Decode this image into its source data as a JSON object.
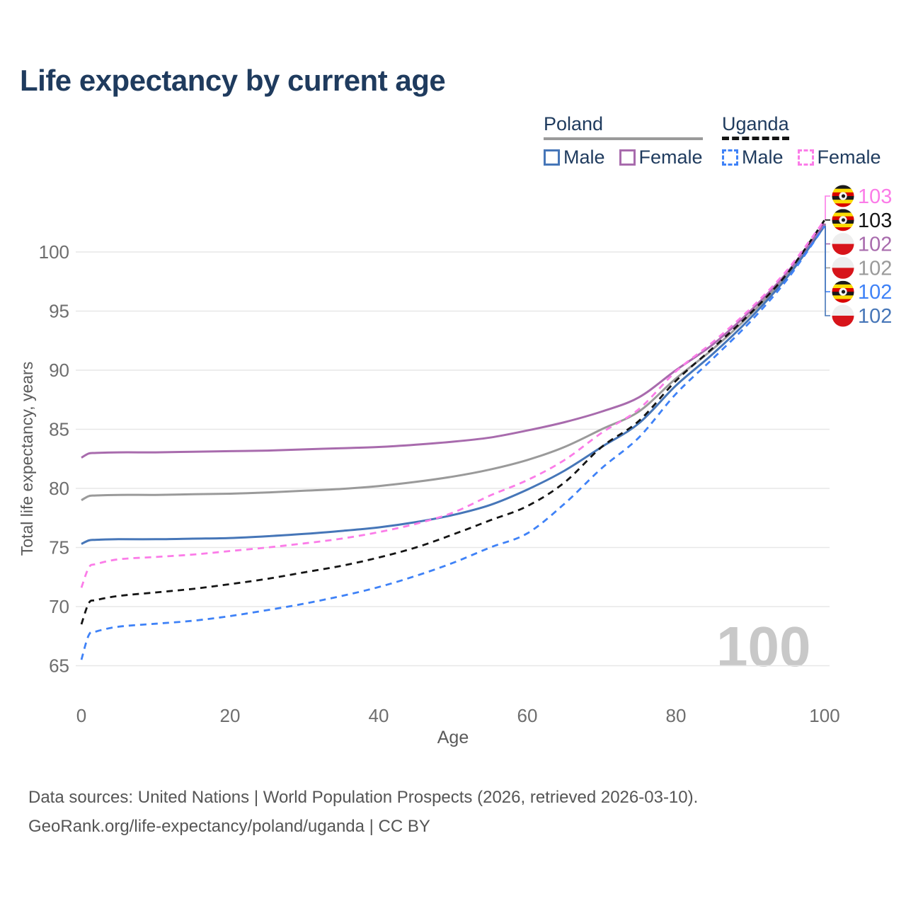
{
  "title": "Life expectancy by current age",
  "legend": {
    "poland": {
      "label": "Poland",
      "male": "Male",
      "female": "Female"
    },
    "uganda": {
      "label": "Uganda",
      "male": "Male",
      "female": "Female"
    }
  },
  "watermark_age_counter": "100",
  "footer": {
    "line1": "Data sources: United Nations | World Population Prospects (2026, retrieved 2026-03-10).",
    "line2": "GeoRank.org/life-expectancy/poland/uganda | CC BY"
  },
  "colors": {
    "title_text": "#1f3b5e",
    "poland_male": "#4676b8",
    "poland_female": "#a86bad",
    "poland_total": "#9a9a9a",
    "uganda_male": "#3f82f7",
    "uganda_female": "#fb7ce8",
    "uganda_total": "#151515",
    "gridline": "#e7e7e7",
    "tick_text": "#6e6e6e",
    "axis_title_text": "#5a5a5a",
    "watermark": "#c8c8c8",
    "poland_flag_white": "#eeeeee",
    "poland_flag_red": "#d7141a",
    "uganda_flag_black": "#1a1a1a",
    "uganda_flag_yellow": "#fcdc04",
    "uganda_flag_red": "#d90000"
  },
  "chart_data": {
    "type": "line",
    "title": "Life expectancy by current age",
    "xlabel": "Age",
    "ylabel": "Total life expectancy, years",
    "xlim": [
      0,
      100
    ],
    "ylim": [
      63,
      104
    ],
    "x_ticks": [
      0,
      20,
      40,
      60,
      80,
      100
    ],
    "y_ticks": [
      65,
      70,
      75,
      80,
      85,
      90,
      95,
      100
    ],
    "grid": "horizontal-only",
    "legend_position": "top-right",
    "ages": [
      0,
      1,
      2,
      5,
      10,
      15,
      20,
      25,
      30,
      35,
      40,
      45,
      50,
      55,
      60,
      65,
      70,
      75,
      80,
      85,
      90,
      95,
      100
    ],
    "series": [
      {
        "id": "pol_t",
        "name": "Poland",
        "country": "poland",
        "sex": "total",
        "style": "solid",
        "color": "#9a9a9a",
        "values": [
          79.0,
          79.35,
          79.4,
          79.45,
          79.45,
          79.5,
          79.55,
          79.65,
          79.8,
          79.95,
          80.2,
          80.55,
          81.0,
          81.6,
          82.4,
          83.5,
          85.0,
          86.5,
          89.3,
          91.8,
          94.7,
          98.1,
          102.3
        ]
      },
      {
        "id": "pol_m",
        "name": "Poland Male",
        "country": "poland",
        "sex": "male",
        "style": "solid",
        "color": "#4676b8",
        "values": [
          75.3,
          75.6,
          75.65,
          75.7,
          75.7,
          75.75,
          75.8,
          75.95,
          76.15,
          76.4,
          76.7,
          77.15,
          77.75,
          78.6,
          79.9,
          81.5,
          83.5,
          85.5,
          88.7,
          91.4,
          94.4,
          97.9,
          102.2
        ]
      },
      {
        "id": "pol_f",
        "name": "Poland Female",
        "country": "poland",
        "sex": "female",
        "style": "solid",
        "color": "#a86bad",
        "values": [
          82.6,
          82.95,
          83.0,
          83.05,
          83.05,
          83.1,
          83.15,
          83.2,
          83.3,
          83.4,
          83.5,
          83.7,
          83.95,
          84.3,
          84.9,
          85.6,
          86.5,
          87.7,
          90.0,
          92.2,
          95.0,
          98.3,
          102.4
        ]
      },
      {
        "id": "uga_m",
        "name": "Uganda Male",
        "country": "uganda",
        "sex": "male",
        "style": "dashed",
        "color": "#3f82f7",
        "values": [
          65.5,
          67.6,
          67.9,
          68.3,
          68.55,
          68.8,
          69.2,
          69.7,
          70.25,
          70.9,
          71.65,
          72.6,
          73.7,
          75.0,
          76.2,
          78.7,
          81.7,
          84.3,
          88.0,
          91.0,
          94.1,
          97.7,
          102.2
        ]
      },
      {
        "id": "uga_t",
        "name": "Uganda",
        "country": "uganda",
        "sex": "total",
        "style": "dashed",
        "color": "#151515",
        "values": [
          68.5,
          70.3,
          70.55,
          70.9,
          71.2,
          71.5,
          71.9,
          72.35,
          72.9,
          73.45,
          74.15,
          75.0,
          76.1,
          77.3,
          78.5,
          80.5,
          83.5,
          85.7,
          89.1,
          91.9,
          94.8,
          98.2,
          102.7
        ]
      },
      {
        "id": "uga_f",
        "name": "Uganda Female",
        "country": "uganda",
        "sex": "female",
        "style": "dashed",
        "color": "#fb7ce8",
        "values": [
          71.6,
          73.3,
          73.6,
          74.0,
          74.2,
          74.4,
          74.7,
          75.0,
          75.35,
          75.75,
          76.3,
          77.0,
          77.95,
          79.4,
          80.7,
          82.4,
          84.7,
          86.7,
          89.9,
          92.4,
          95.2,
          98.5,
          102.7
        ]
      }
    ],
    "end_labels": [
      {
        "series": "uga_f",
        "flag": "uganda-flag-icon",
        "value": "103"
      },
      {
        "series": "uga_t",
        "flag": "uganda-flag-icon",
        "value": "103"
      },
      {
        "series": "pol_f",
        "flag": "poland-flag-icon",
        "value": "102"
      },
      {
        "series": "pol_t",
        "flag": "poland-flag-icon",
        "value": "102"
      },
      {
        "series": "uga_m",
        "flag": "uganda-flag-icon",
        "value": "102"
      },
      {
        "series": "pol_m",
        "flag": "poland-flag-icon",
        "value": "102"
      }
    ]
  }
}
